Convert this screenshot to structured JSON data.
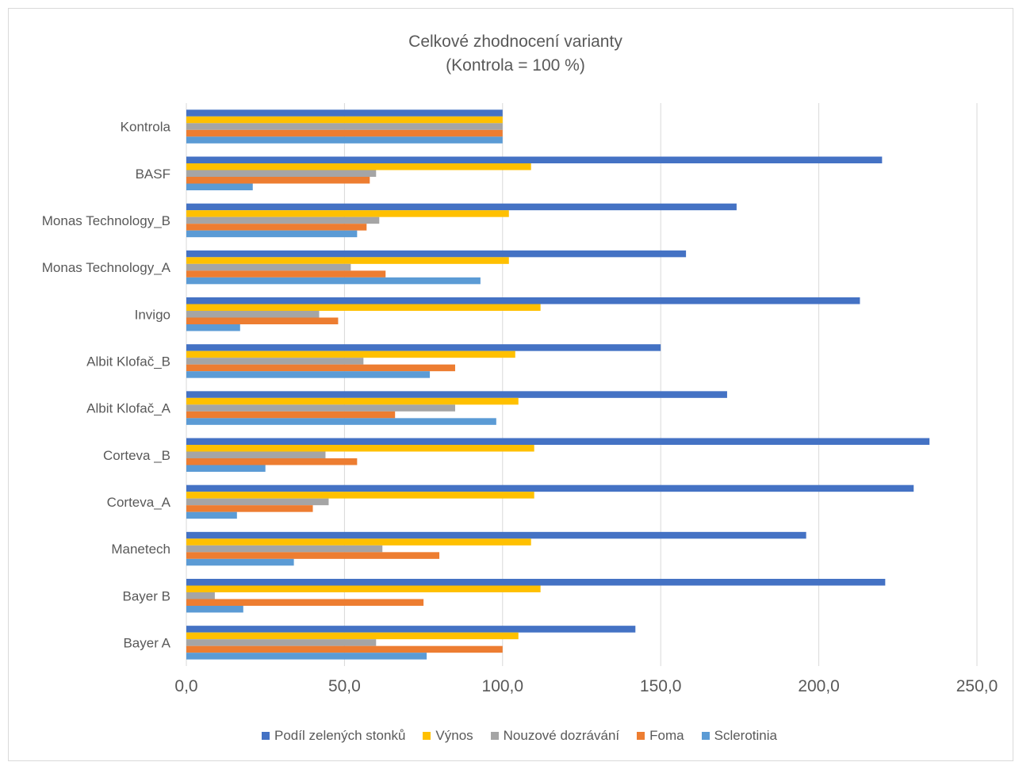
{
  "chart_data": {
    "type": "bar",
    "orientation": "horizontal",
    "title": "Celkové zhodnocení varianty",
    "subtitle": "(Kontrola = 100 %)",
    "categories": [
      "Kontrola",
      "BASF",
      "Monas Technology_B",
      "Monas Technology_A",
      "Invigo",
      "Albit Klofač_B",
      "Albit Klofač_A",
      "Corteva _B",
      "Corteva_A",
      "Manetech",
      "Bayer B",
      "Bayer A"
    ],
    "series": [
      {
        "name": "Podíl zelených stonků",
        "color": "#4472c4",
        "values": [
          100,
          220,
          174,
          158,
          213,
          150,
          171,
          235,
          230,
          196,
          221,
          142
        ]
      },
      {
        "name": "Výnos",
        "color": "#ffc000",
        "values": [
          100,
          109,
          102,
          102,
          112,
          104,
          105,
          110,
          110,
          109,
          112,
          105
        ]
      },
      {
        "name": "Nouzové dozrávání",
        "color": "#a5a5a5",
        "values": [
          100,
          60,
          61,
          52,
          42,
          56,
          85,
          44,
          45,
          62,
          9,
          60
        ]
      },
      {
        "name": "Foma",
        "color": "#ed7d31",
        "values": [
          100,
          58,
          57,
          63,
          48,
          85,
          66,
          54,
          40,
          80,
          75,
          100
        ]
      },
      {
        "name": "Sclerotinia",
        "color": "#5b9bd5",
        "values": [
          100,
          21,
          54,
          93,
          17,
          77,
          98,
          25,
          16,
          34,
          18,
          76
        ]
      }
    ],
    "legend_order": [
      "Podíl zelených stonků",
      "Výnos",
      "Nouzové dozrávání",
      "Foma",
      "Sclerotinia"
    ],
    "xlim": [
      0,
      250
    ],
    "x_ticks": [
      "0,0",
      "50,0",
      "100,0",
      "150,0",
      "200,0",
      "250,0"
    ],
    "x_tick_values": [
      0,
      50,
      100,
      150,
      200,
      250
    ],
    "grid": true,
    "legend_position": "bottom"
  }
}
